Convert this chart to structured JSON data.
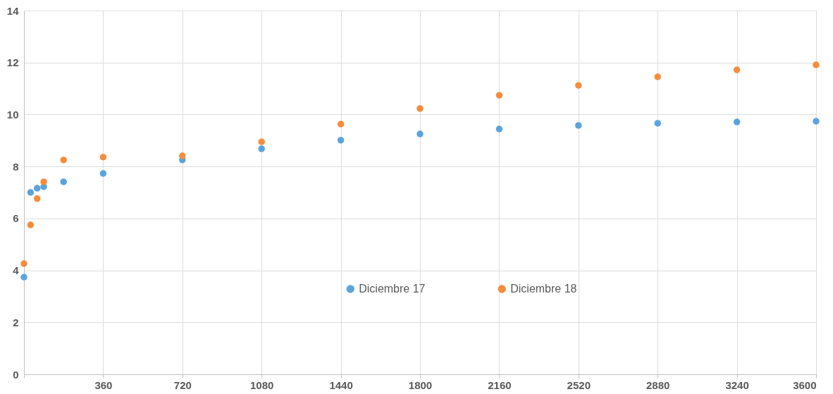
{
  "chart_data": {
    "type": "scatter",
    "x": [
      0,
      30,
      60,
      90,
      180,
      360,
      720,
      1080,
      1440,
      1800,
      2160,
      2520,
      2880,
      3240,
      3600
    ],
    "series": [
      {
        "name": "Diciembre 17",
        "color": "#5ba3dc",
        "values": [
          3.74,
          7.0,
          7.16,
          7.22,
          7.41,
          7.73,
          8.25,
          8.68,
          9.01,
          9.25,
          9.44,
          9.58,
          9.66,
          9.71,
          9.74
        ]
      },
      {
        "name": "Diciembre 18",
        "color": "#f58d3d",
        "values": [
          4.26,
          5.75,
          6.76,
          7.41,
          8.25,
          8.36,
          8.41,
          8.95,
          9.63,
          10.23,
          10.74,
          11.12,
          11.45,
          11.72,
          11.91
        ]
      }
    ],
    "xlim": [
      0,
      3600
    ],
    "xticks": [
      {
        "value": 0,
        "label": null
      },
      360,
      720,
      1080,
      1440,
      1800,
      2160,
      2520,
      2880,
      3240,
      3600
    ],
    "ylim": [
      0,
      14
    ],
    "yticks": [
      0,
      2,
      4,
      6,
      8,
      10,
      12,
      14
    ],
    "grid": true,
    "legend": "bottom",
    "marker": "circle"
  }
}
